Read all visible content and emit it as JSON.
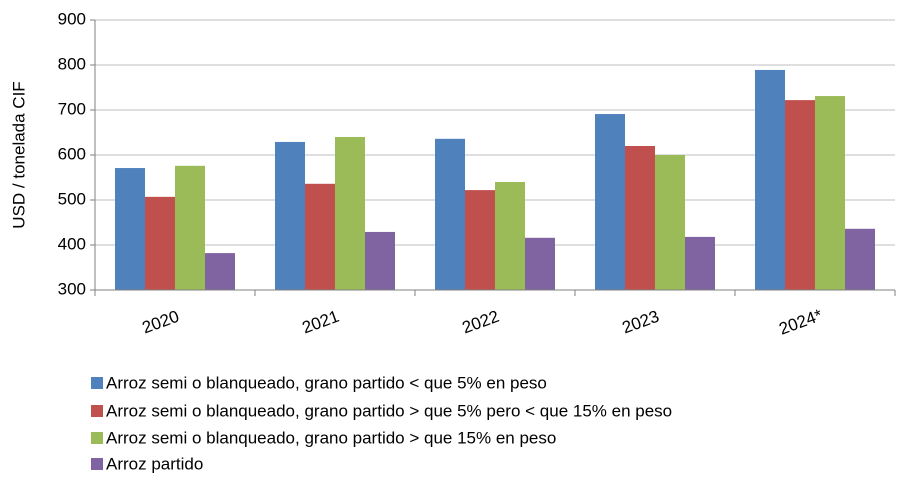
{
  "chart_data": {
    "type": "bar",
    "y_label": "USD / tonelada CIF",
    "categories": [
      "2020",
      "2021",
      "2022",
      "2023",
      "2024*"
    ],
    "series": [
      {
        "name": "Arroz semi o blanqueado, grano partido < que 5% en peso",
        "color": "#4f81bd",
        "values": [
          571,
          629,
          636,
          691,
          789
        ]
      },
      {
        "name": "Arroz semi o blanqueado, grano partido > que 5% pero < que 15% en peso",
        "color": "#c0504d",
        "values": [
          507,
          536,
          522,
          620,
          722
        ]
      },
      {
        "name": "Arroz semi o blanqueado, grano partido > que 15% en peso",
        "color": "#9bbb59",
        "values": [
          576,
          640,
          540,
          600,
          731
        ]
      },
      {
        "name": "Arroz partido",
        "color": "#8064a2",
        "values": [
          382,
          429,
          416,
          418,
          436
        ]
      }
    ],
    "ylim": [
      300,
      900
    ],
    "yticks": [
      300,
      400,
      500,
      600,
      700,
      800,
      900
    ],
    "grid": true,
    "legend": "bottom"
  }
}
